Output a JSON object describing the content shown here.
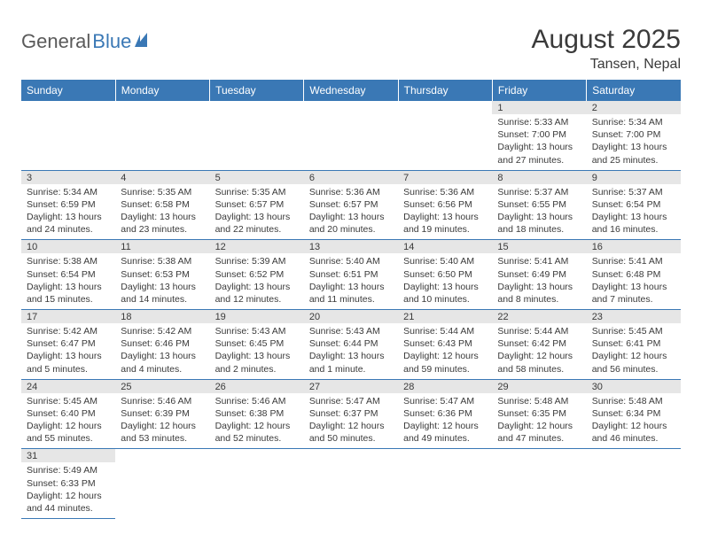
{
  "logo": {
    "text1": "General",
    "text2": "Blue"
  },
  "title": "August 2025",
  "location": "Tansen, Nepal",
  "colors": {
    "header_bg": "#3a78b5",
    "header_text": "#ffffff",
    "daynum_bg": "#e6e6e6",
    "text": "#3a3a3a",
    "row_border": "#3a78b5"
  },
  "weekdays": [
    "Sunday",
    "Monday",
    "Tuesday",
    "Wednesday",
    "Thursday",
    "Friday",
    "Saturday"
  ],
  "weeks": [
    [
      null,
      null,
      null,
      null,
      null,
      {
        "n": "1",
        "sr": "5:33 AM",
        "ss": "7:00 PM",
        "dl": "13 hours and 27 minutes."
      },
      {
        "n": "2",
        "sr": "5:34 AM",
        "ss": "7:00 PM",
        "dl": "13 hours and 25 minutes."
      }
    ],
    [
      {
        "n": "3",
        "sr": "5:34 AM",
        "ss": "6:59 PM",
        "dl": "13 hours and 24 minutes."
      },
      {
        "n": "4",
        "sr": "5:35 AM",
        "ss": "6:58 PM",
        "dl": "13 hours and 23 minutes."
      },
      {
        "n": "5",
        "sr": "5:35 AM",
        "ss": "6:57 PM",
        "dl": "13 hours and 22 minutes."
      },
      {
        "n": "6",
        "sr": "5:36 AM",
        "ss": "6:57 PM",
        "dl": "13 hours and 20 minutes."
      },
      {
        "n": "7",
        "sr": "5:36 AM",
        "ss": "6:56 PM",
        "dl": "13 hours and 19 minutes."
      },
      {
        "n": "8",
        "sr": "5:37 AM",
        "ss": "6:55 PM",
        "dl": "13 hours and 18 minutes."
      },
      {
        "n": "9",
        "sr": "5:37 AM",
        "ss": "6:54 PM",
        "dl": "13 hours and 16 minutes."
      }
    ],
    [
      {
        "n": "10",
        "sr": "5:38 AM",
        "ss": "6:54 PM",
        "dl": "13 hours and 15 minutes."
      },
      {
        "n": "11",
        "sr": "5:38 AM",
        "ss": "6:53 PM",
        "dl": "13 hours and 14 minutes."
      },
      {
        "n": "12",
        "sr": "5:39 AM",
        "ss": "6:52 PM",
        "dl": "13 hours and 12 minutes."
      },
      {
        "n": "13",
        "sr": "5:40 AM",
        "ss": "6:51 PM",
        "dl": "13 hours and 11 minutes."
      },
      {
        "n": "14",
        "sr": "5:40 AM",
        "ss": "6:50 PM",
        "dl": "13 hours and 10 minutes."
      },
      {
        "n": "15",
        "sr": "5:41 AM",
        "ss": "6:49 PM",
        "dl": "13 hours and 8 minutes."
      },
      {
        "n": "16",
        "sr": "5:41 AM",
        "ss": "6:48 PM",
        "dl": "13 hours and 7 minutes."
      }
    ],
    [
      {
        "n": "17",
        "sr": "5:42 AM",
        "ss": "6:47 PM",
        "dl": "13 hours and 5 minutes."
      },
      {
        "n": "18",
        "sr": "5:42 AM",
        "ss": "6:46 PM",
        "dl": "13 hours and 4 minutes."
      },
      {
        "n": "19",
        "sr": "5:43 AM",
        "ss": "6:45 PM",
        "dl": "13 hours and 2 minutes."
      },
      {
        "n": "20",
        "sr": "5:43 AM",
        "ss": "6:44 PM",
        "dl": "13 hours and 1 minute."
      },
      {
        "n": "21",
        "sr": "5:44 AM",
        "ss": "6:43 PM",
        "dl": "12 hours and 59 minutes."
      },
      {
        "n": "22",
        "sr": "5:44 AM",
        "ss": "6:42 PM",
        "dl": "12 hours and 58 minutes."
      },
      {
        "n": "23",
        "sr": "5:45 AM",
        "ss": "6:41 PM",
        "dl": "12 hours and 56 minutes."
      }
    ],
    [
      {
        "n": "24",
        "sr": "5:45 AM",
        "ss": "6:40 PM",
        "dl": "12 hours and 55 minutes."
      },
      {
        "n": "25",
        "sr": "5:46 AM",
        "ss": "6:39 PM",
        "dl": "12 hours and 53 minutes."
      },
      {
        "n": "26",
        "sr": "5:46 AM",
        "ss": "6:38 PM",
        "dl": "12 hours and 52 minutes."
      },
      {
        "n": "27",
        "sr": "5:47 AM",
        "ss": "6:37 PM",
        "dl": "12 hours and 50 minutes."
      },
      {
        "n": "28",
        "sr": "5:47 AM",
        "ss": "6:36 PM",
        "dl": "12 hours and 49 minutes."
      },
      {
        "n": "29",
        "sr": "5:48 AM",
        "ss": "6:35 PM",
        "dl": "12 hours and 47 minutes."
      },
      {
        "n": "30",
        "sr": "5:48 AM",
        "ss": "6:34 PM",
        "dl": "12 hours and 46 minutes."
      }
    ],
    [
      {
        "n": "31",
        "sr": "5:49 AM",
        "ss": "6:33 PM",
        "dl": "12 hours and 44 minutes."
      },
      null,
      null,
      null,
      null,
      null,
      null
    ]
  ],
  "labels": {
    "sunrise": "Sunrise:",
    "sunset": "Sunset:",
    "daylight": "Daylight:"
  }
}
